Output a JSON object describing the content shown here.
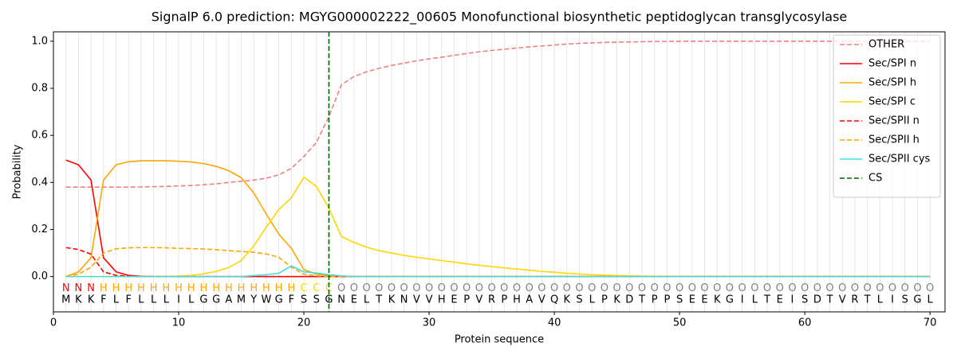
{
  "chart_data": {
    "type": "line",
    "title": "SignalP 6.0 prediction: MGYG000002222_00605 Monofunctional biosynthetic peptidoglycan transglycosylase",
    "xlabel": "Protein sequence",
    "ylabel": "Probability",
    "xlim": [
      0,
      71.2
    ],
    "ylim": [
      -0.15,
      1.04
    ],
    "xticks": [
      0,
      10,
      20,
      30,
      40,
      50,
      60,
      70
    ],
    "yticks": [
      {
        "value": 0,
        "label": "0.0"
      },
      {
        "value": 0.2,
        "label": "0.2"
      },
      {
        "value": 0.4,
        "label": "0.4"
      },
      {
        "value": 0.6,
        "label": "0.6"
      },
      {
        "value": 0.8,
        "label": "0.8"
      },
      {
        "value": 1,
        "label": "1.0"
      }
    ],
    "x": [
      1,
      2,
      3,
      4,
      5,
      6,
      7,
      8,
      9,
      10,
      11,
      12,
      13,
      14,
      15,
      16,
      17,
      18,
      19,
      20,
      21,
      22,
      23,
      24,
      25,
      26,
      27,
      28,
      29,
      30,
      31,
      32,
      33,
      34,
      35,
      36,
      37,
      38,
      39,
      40,
      41,
      42,
      43,
      44,
      45,
      46,
      47,
      48,
      49,
      50,
      51,
      52,
      53,
      54,
      55,
      56,
      57,
      58,
      59,
      60,
      61,
      62,
      63,
      64,
      65,
      66,
      67,
      68,
      69,
      70
    ],
    "residues": [
      "M",
      "K",
      "K",
      "F",
      "L",
      "F",
      "L",
      "L",
      "L",
      "I",
      "L",
      "G",
      "G",
      "A",
      "M",
      "Y",
      "W",
      "G",
      "F",
      "S",
      "S",
      "G",
      "N",
      "E",
      "L",
      "T",
      "K",
      "N",
      "V",
      "V",
      "H",
      "E",
      "P",
      "V",
      "R",
      "P",
      "H",
      "A",
      "V",
      "Q",
      "K",
      "S",
      "L",
      "P",
      "K",
      "D",
      "T",
      "P",
      "P",
      "S",
      "E",
      "E",
      "K",
      "G",
      "I",
      "L",
      "T",
      "E",
      "I",
      "S",
      "D",
      "T",
      "V",
      "R",
      "T",
      "L",
      "I",
      "S",
      "G",
      "L"
    ],
    "labels": [
      "N",
      "N",
      "N",
      "H",
      "H",
      "H",
      "H",
      "H",
      "H",
      "H",
      "H",
      "H",
      "H",
      "H",
      "H",
      "H",
      "H",
      "H",
      "H",
      "C",
      "C",
      "C",
      "O",
      "O",
      "O",
      "O",
      "O",
      "O",
      "O",
      "O",
      "O",
      "O",
      "O",
      "O",
      "O",
      "O",
      "O",
      "O",
      "O",
      "O",
      "O",
      "O",
      "O",
      "O",
      "O",
      "O",
      "O",
      "O",
      "O",
      "O",
      "O",
      "O",
      "O",
      "O",
      "O",
      "O",
      "O",
      "O",
      "O",
      "O",
      "O",
      "O",
      "O",
      "O",
      "O",
      "O",
      "O",
      "O",
      "O",
      "O"
    ],
    "label_colors": {
      "N": "#ff0000",
      "H": "#ffa500",
      "C": "#ffd700",
      "O": "#808080"
    },
    "legend": "upper right",
    "series": [
      {
        "name": "OTHER",
        "color": "#f08080",
        "dashed": true,
        "values": [
          0.38,
          0.38,
          0.38,
          0.38,
          0.38,
          0.38,
          0.381,
          0.382,
          0.383,
          0.385,
          0.387,
          0.39,
          0.394,
          0.4,
          0.405,
          0.41,
          0.418,
          0.432,
          0.46,
          0.51,
          0.57,
          0.68,
          0.815,
          0.85,
          0.87,
          0.885,
          0.897,
          0.907,
          0.917,
          0.925,
          0.932,
          0.94,
          0.948,
          0.955,
          0.961,
          0.966,
          0.971,
          0.976,
          0.98,
          0.984,
          0.988,
          0.991,
          0.993,
          0.995,
          0.996,
          0.997,
          0.998,
          0.999,
          0.999,
          1,
          1,
          1,
          1,
          1,
          1,
          1,
          1,
          1,
          1,
          1,
          1,
          1,
          1,
          1,
          1,
          1,
          1,
          1,
          1,
          1
        ]
      },
      {
        "name": "Sec/SPI n",
        "color": "#ff0000",
        "dashed": false,
        "values": [
          0.495,
          0.475,
          0.41,
          0.08,
          0.02,
          0.005,
          0.001,
          0,
          0,
          0,
          0,
          0,
          0,
          0,
          0,
          0,
          0,
          0,
          0,
          0,
          0,
          0,
          0,
          0,
          0,
          0,
          0,
          0,
          0,
          0,
          0,
          0,
          0,
          0,
          0,
          0,
          0,
          0,
          0,
          0,
          0,
          0,
          0,
          0,
          0,
          0,
          0,
          0,
          0,
          0,
          0,
          0,
          0,
          0,
          0,
          0,
          0,
          0,
          0,
          0,
          0,
          0,
          0,
          0,
          0,
          0,
          0,
          0,
          0,
          0
        ]
      },
      {
        "name": "Sec/SPI h",
        "color": "#ffa500",
        "dashed": false,
        "values": [
          0,
          0.02,
          0.08,
          0.41,
          0.475,
          0.488,
          0.492,
          0.492,
          0.492,
          0.49,
          0.487,
          0.48,
          0.468,
          0.45,
          0.42,
          0.355,
          0.265,
          0.18,
          0.12,
          0.03,
          0.01,
          0.005,
          0.002,
          0,
          0,
          0,
          0,
          0,
          0,
          0,
          0,
          0,
          0,
          0,
          0,
          0,
          0,
          0,
          0,
          0,
          0,
          0,
          0,
          0,
          0,
          0,
          0,
          0,
          0,
          0,
          0,
          0,
          0,
          0,
          0,
          0,
          0,
          0,
          0,
          0,
          0,
          0,
          0,
          0,
          0,
          0,
          0,
          0,
          0,
          0
        ]
      },
      {
        "name": "Sec/SPI c",
        "color": "#ffd700",
        "dashed": false,
        "values": [
          0,
          0,
          0,
          0,
          0,
          0,
          0,
          0,
          0,
          0.002,
          0.005,
          0.012,
          0.022,
          0.038,
          0.068,
          0.13,
          0.21,
          0.285,
          0.335,
          0.422,
          0.383,
          0.29,
          0.17,
          0.145,
          0.125,
          0.11,
          0.1,
          0.09,
          0.082,
          0.075,
          0.068,
          0.061,
          0.054,
          0.048,
          0.042,
          0.037,
          0.032,
          0.027,
          0.022,
          0.018,
          0.014,
          0.011,
          0.008,
          0.006,
          0.004,
          0.003,
          0.002,
          0.001,
          0,
          0,
          0,
          0,
          0,
          0,
          0,
          0,
          0,
          0,
          0,
          0,
          0,
          0,
          0,
          0,
          0,
          0,
          0,
          0,
          0,
          0
        ]
      },
      {
        "name": "Sec/SPII n",
        "color": "#ff0000",
        "dashed": true,
        "values": [
          0.123,
          0.115,
          0.095,
          0.02,
          0.005,
          0.002,
          0,
          0,
          0,
          0,
          0,
          0,
          0,
          0,
          0,
          0,
          0,
          0,
          0,
          0,
          0,
          0,
          0,
          0,
          0,
          0,
          0,
          0,
          0,
          0,
          0,
          0,
          0,
          0,
          0,
          0,
          0,
          0,
          0,
          0,
          0,
          0,
          0,
          0,
          0,
          0,
          0,
          0,
          0,
          0,
          0,
          0,
          0,
          0,
          0,
          0,
          0,
          0,
          0,
          0,
          0,
          0,
          0,
          0,
          0,
          0,
          0,
          0,
          0,
          0
        ]
      },
      {
        "name": "Sec/SPII h",
        "color": "#ffa500",
        "dashed": true,
        "values": [
          0,
          0.01,
          0.04,
          0.1,
          0.118,
          0.122,
          0.123,
          0.123,
          0.122,
          0.12,
          0.119,
          0.117,
          0.114,
          0.11,
          0.107,
          0.103,
          0.096,
          0.082,
          0.04,
          0.01,
          0.003,
          0,
          0,
          0,
          0,
          0,
          0,
          0,
          0,
          0,
          0,
          0,
          0,
          0,
          0,
          0,
          0,
          0,
          0,
          0,
          0,
          0,
          0,
          0,
          0,
          0,
          0,
          0,
          0,
          0,
          0,
          0,
          0,
          0,
          0,
          0,
          0,
          0,
          0,
          0,
          0,
          0,
          0,
          0,
          0,
          0,
          0,
          0,
          0,
          0
        ]
      },
      {
        "name": "Sec/SPII cys",
        "color": "#40e0e0",
        "dashed": false,
        "values": [
          0,
          0,
          0,
          0,
          0,
          0,
          0,
          0,
          0,
          0,
          0,
          0,
          0,
          0,
          0,
          0.004,
          0.008,
          0.014,
          0.045,
          0.02,
          0.015,
          0.008,
          0.003,
          0,
          0,
          0,
          0,
          0,
          0,
          0,
          0,
          0,
          0,
          0,
          0,
          0,
          0,
          0,
          0,
          0,
          0,
          0,
          0,
          0,
          0,
          0,
          0,
          0,
          0,
          0,
          0,
          0,
          0,
          0,
          0,
          0,
          0,
          0,
          0,
          0,
          0,
          0,
          0,
          0,
          0,
          0,
          0,
          0,
          0,
          0
        ]
      }
    ],
    "cs": {
      "name": "CS",
      "color": "#006400",
      "x": 22
    }
  }
}
